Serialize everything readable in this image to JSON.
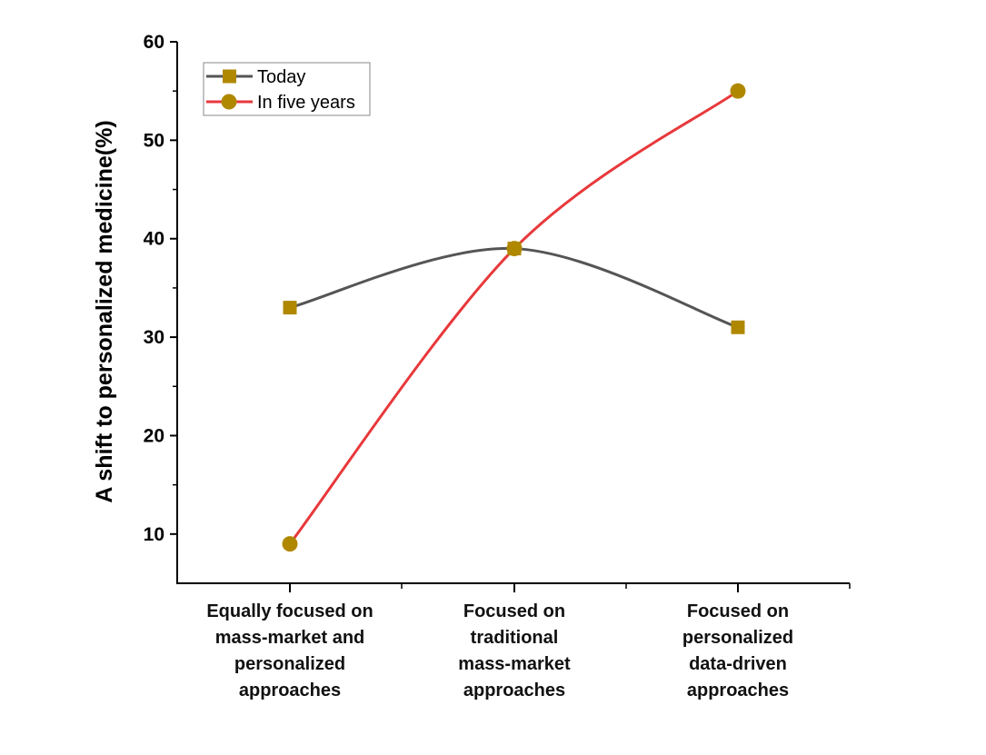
{
  "chart_data": {
    "type": "line",
    "title": "",
    "xlabel": "",
    "ylabel": "A shift to personalized medicine(%)",
    "ylim": [
      5,
      60
    ],
    "yticks": [
      10,
      20,
      30,
      40,
      50,
      60
    ],
    "grid": false,
    "legend_position": "top-left",
    "categories": [
      [
        "Equally focused on",
        "mass-market and",
        "personalized",
        "approaches"
      ],
      [
        "Focused on",
        "traditional",
        "mass-market",
        "approaches"
      ],
      [
        "Focused on",
        "personalized",
        "data-driven",
        "approaches"
      ]
    ],
    "series": [
      {
        "name": "Today",
        "values": [
          33,
          39,
          31
        ],
        "line_color": "#555555",
        "marker": "square",
        "marker_color": "#B08800"
      },
      {
        "name": "In five years",
        "values": [
          9,
          39,
          55
        ],
        "line_color": "#E8383B",
        "marker": "circle",
        "marker_color": "#B08800"
      }
    ]
  }
}
